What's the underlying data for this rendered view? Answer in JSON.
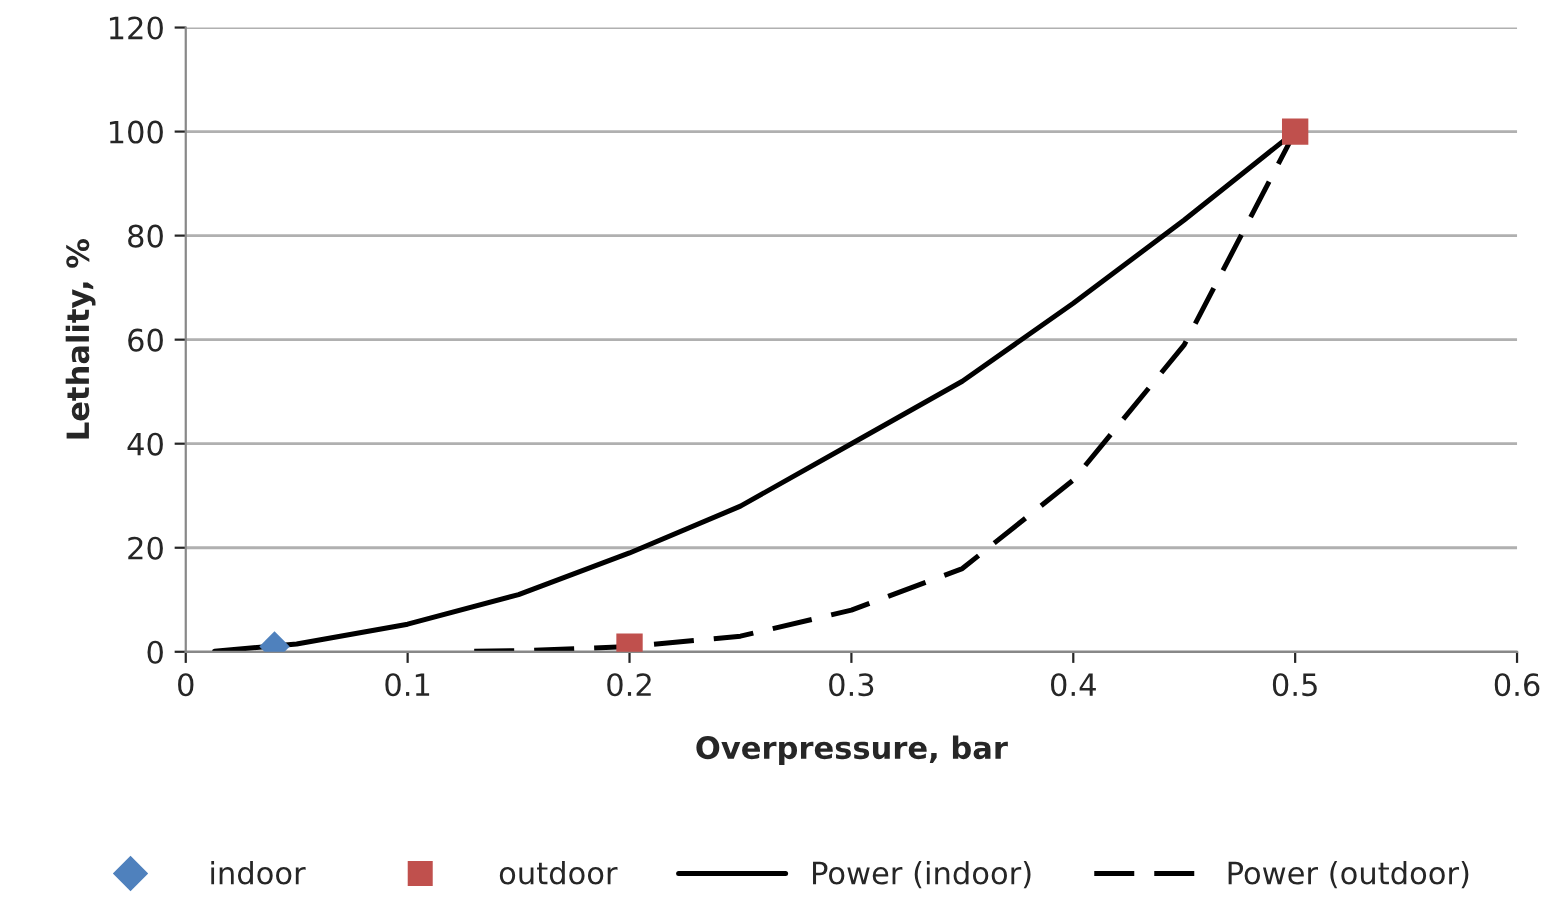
{
  "chart_data": {
    "type": "scatter",
    "xlabel": "Overpressure, bar",
    "ylabel": "Lethality, %",
    "xlim": [
      0,
      0.6
    ],
    "xticks": [
      {
        "value": 0,
        "label": "0"
      },
      0.1,
      0.2,
      0.3,
      0.4,
      0.5,
      0.6
    ],
    "ylim": [
      0,
      120
    ],
    "yticks": [
      0,
      20,
      40,
      60,
      80,
      100,
      120
    ],
    "grid": "y",
    "legend": "bottom",
    "series": [
      {
        "name": "indoor",
        "type": "scatter",
        "marker": "diamond",
        "color": "#4f81bd",
        "x": [
          0.04
        ],
        "values": [
          1
        ]
      },
      {
        "name": "outdoor",
        "type": "scatter",
        "marker": "square",
        "color": "#c0504d",
        "x": [
          0.2,
          0.5
        ],
        "values": [
          1,
          100
        ]
      },
      {
        "name": "Power (indoor)",
        "type": "line",
        "line_style": "solid",
        "color": "#000000",
        "x": [
          0.013,
          0.05,
          0.1,
          0.15,
          0.2,
          0.25,
          0.3,
          0.35,
          0.4,
          0.45,
          0.5
        ],
        "values": [
          0.1,
          1.5,
          5.3,
          11,
          19,
          28,
          40,
          52,
          67,
          83,
          100
        ]
      },
      {
        "name": "Power (outdoor)",
        "type": "line",
        "line_style": "dashed",
        "color": "#000000",
        "x": [
          0.13,
          0.15,
          0.2,
          0.25,
          0.3,
          0.35,
          0.4,
          0.45,
          0.5
        ],
        "values": [
          0.1,
          0.2,
          1,
          3,
          8,
          16,
          33,
          59,
          100
        ]
      }
    ]
  }
}
